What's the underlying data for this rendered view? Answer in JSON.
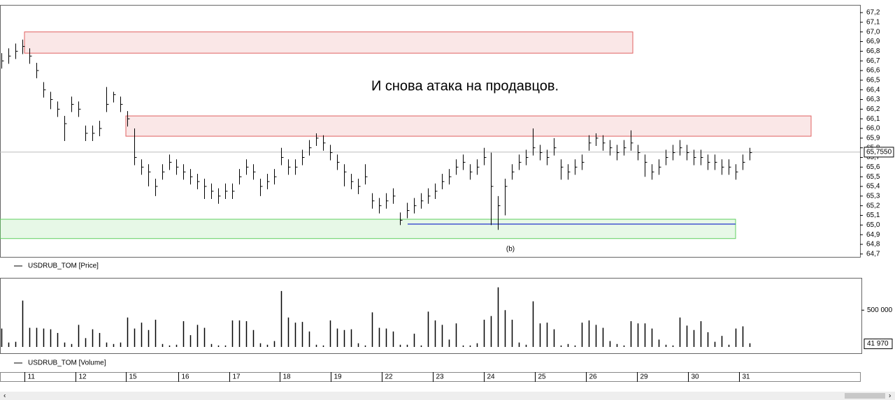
{
  "chart_data": [
    {
      "type": "ohlc",
      "annotation": "И снова атака на продавцов.",
      "panel_label": "(b)",
      "xlim": [
        -0.2,
        122.8
      ],
      "ylim": [
        64.67,
        67.28
      ],
      "yticks": [
        {
          "value": 64.7,
          "label": "64,7"
        },
        {
          "value": 64.8,
          "label": "64,8"
        },
        {
          "value": 64.9,
          "label": "64,9"
        },
        {
          "value": 65.0,
          "label": "65,0"
        },
        {
          "value": 65.1,
          "label": "65,1"
        },
        {
          "value": 65.2,
          "label": "65,2"
        },
        {
          "value": 65.3,
          "label": "65,3"
        },
        {
          "value": 65.4,
          "label": "65,4"
        },
        {
          "value": 65.5,
          "label": "65,5"
        },
        {
          "value": 65.6,
          "label": "65,6"
        },
        {
          "value": 65.7,
          "label": "65,7"
        },
        {
          "value": 65.8,
          "label": "65,8"
        },
        {
          "value": 65.9,
          "label": "65,9"
        },
        {
          "value": 66.0,
          "label": "66,0"
        },
        {
          "value": 66.1,
          "label": "66,1"
        },
        {
          "value": 66.2,
          "label": "66,2"
        },
        {
          "value": 66.3,
          "label": "66,3"
        },
        {
          "value": 66.4,
          "label": "66,4"
        },
        {
          "value": 66.5,
          "label": "66,5"
        },
        {
          "value": 66.6,
          "label": "66,6"
        },
        {
          "value": 66.7,
          "label": "66,7"
        },
        {
          "value": 66.8,
          "label": "66,8"
        },
        {
          "value": 66.9,
          "label": "66,9"
        },
        {
          "value": 67.0,
          "label": "67,0"
        },
        {
          "value": 67.1,
          "label": "67,1"
        },
        {
          "value": 67.2,
          "label": "67,2"
        }
      ],
      "last_price": {
        "value": 65.755,
        "label": "65,7550"
      },
      "zones": [
        {
          "low": 66.78,
          "high": 67.0,
          "x0": 3.3,
          "x1": 90.3,
          "color": "#e06060"
        },
        {
          "low": 65.92,
          "high": 66.13,
          "x0": 17.8,
          "x1": 115.8,
          "color": "#e06060"
        },
        {
          "low": 64.86,
          "high": 65.06,
          "x0": -0.2,
          "x1": 105.0,
          "color": "#60d060"
        }
      ],
      "level": {
        "value": 65.01,
        "x0": 58.1,
        "x1": 105.0,
        "color": "#2233cc"
      },
      "series": [
        {
          "name": "USDRUB_TOM [Price]",
          "color": "#000000",
          "high": [
            66.78,
            66.83,
            66.88,
            66.92,
            66.83,
            66.68,
            66.48,
            66.38,
            66.28,
            66.13,
            66.33,
            66.28,
            66.03,
            66.03,
            66.08,
            66.43,
            66.38,
            66.33,
            66.18,
            66.0,
            65.68,
            65.63,
            65.48,
            65.63,
            65.73,
            65.68,
            65.63,
            65.58,
            65.53,
            65.48,
            65.43,
            65.38,
            65.43,
            65.43,
            65.58,
            65.68,
            65.63,
            65.48,
            65.53,
            65.58,
            65.8,
            65.68,
            65.68,
            65.78,
            65.88,
            65.95,
            65.93,
            65.83,
            65.73,
            65.63,
            65.53,
            65.48,
            65.63,
            65.33,
            65.28,
            65.33,
            65.38,
            65.13,
            65.23,
            65.28,
            65.33,
            65.38,
            65.43,
            65.53,
            65.58,
            65.68,
            65.73,
            65.63,
            65.68,
            65.8,
            65.75,
            65.3,
            65.48,
            65.63,
            65.73,
            65.78,
            66.0,
            65.83,
            65.78,
            65.9,
            65.68,
            65.63,
            65.68,
            65.73,
            65.93,
            65.95,
            65.93,
            65.88,
            65.83,
            65.88,
            65.98,
            65.83,
            65.73,
            65.63,
            65.68,
            65.78,
            65.83,
            65.88,
            65.83,
            65.78,
            65.78,
            65.73,
            65.73,
            65.68,
            65.68,
            65.63,
            65.73,
            65.8
          ],
          "low": [
            66.62,
            66.67,
            66.72,
            66.77,
            66.67,
            66.52,
            66.32,
            66.2,
            66.12,
            65.87,
            66.17,
            66.12,
            65.87,
            65.87,
            65.92,
            66.17,
            66.27,
            66.17,
            66.02,
            65.62,
            65.52,
            65.4,
            65.3,
            65.47,
            65.57,
            65.52,
            65.47,
            65.42,
            65.37,
            65.27,
            65.27,
            65.22,
            65.27,
            65.27,
            65.42,
            65.52,
            65.47,
            65.3,
            65.37,
            65.42,
            65.62,
            65.52,
            65.52,
            65.62,
            65.72,
            65.82,
            65.77,
            65.67,
            65.57,
            65.4,
            65.37,
            65.32,
            65.42,
            65.17,
            65.12,
            65.17,
            65.22,
            65.0,
            65.07,
            65.12,
            65.17,
            65.22,
            65.27,
            65.37,
            65.42,
            65.52,
            65.57,
            65.47,
            65.52,
            65.62,
            65.0,
            64.95,
            65.1,
            65.47,
            65.57,
            65.62,
            65.72,
            65.67,
            65.62,
            65.72,
            65.47,
            65.47,
            65.52,
            65.57,
            65.77,
            65.82,
            65.77,
            65.72,
            65.67,
            65.72,
            65.77,
            65.67,
            65.5,
            65.47,
            65.52,
            65.62,
            65.67,
            65.72,
            65.67,
            65.62,
            65.62,
            65.57,
            65.57,
            65.52,
            65.52,
            65.47,
            65.57,
            65.67
          ],
          "close": [
            66.7,
            66.75,
            66.8,
            66.85,
            66.75,
            66.6,
            66.4,
            66.3,
            66.2,
            66.05,
            66.25,
            66.2,
            65.95,
            65.95,
            66.0,
            66.25,
            66.35,
            66.25,
            66.1,
            65.7,
            65.6,
            65.55,
            65.4,
            65.55,
            65.65,
            65.6,
            65.55,
            65.5,
            65.45,
            65.4,
            65.35,
            65.3,
            65.35,
            65.35,
            65.5,
            65.6,
            65.55,
            65.4,
            65.45,
            65.5,
            65.7,
            65.6,
            65.6,
            65.7,
            65.8,
            65.9,
            65.85,
            65.75,
            65.65,
            65.55,
            65.45,
            65.4,
            65.5,
            65.25,
            65.2,
            65.25,
            65.3,
            65.05,
            65.15,
            65.2,
            65.25,
            65.3,
            65.35,
            65.45,
            65.5,
            65.6,
            65.65,
            65.55,
            65.6,
            65.7,
            65.4,
            65.2,
            65.4,
            65.55,
            65.65,
            65.7,
            65.8,
            65.75,
            65.7,
            65.8,
            65.6,
            65.55,
            65.6,
            65.65,
            65.85,
            65.9,
            65.85,
            65.8,
            65.75,
            65.8,
            65.85,
            65.75,
            65.65,
            65.55,
            65.6,
            65.7,
            65.75,
            65.8,
            65.75,
            65.7,
            65.7,
            65.65,
            65.65,
            65.6,
            65.6,
            65.55,
            65.65,
            65.75
          ]
        }
      ]
    },
    {
      "type": "bar",
      "xlim": [
        -0.2,
        122.8
      ],
      "ylim": [
        0,
        920000
      ],
      "yticks": [
        {
          "value": 500000,
          "label": "500 000"
        }
      ],
      "last_volume": {
        "value": 41970,
        "label": "41 970"
      },
      "xticks": [
        {
          "value": 3.3,
          "label": "11"
        },
        {
          "value": 10.6,
          "label": "12"
        },
        {
          "value": 17.8,
          "label": "15"
        },
        {
          "value": 25.3,
          "label": "16"
        },
        {
          "value": 32.6,
          "label": "17"
        },
        {
          "value": 39.8,
          "label": "18"
        },
        {
          "value": 47.1,
          "label": "19"
        },
        {
          "value": 54.4,
          "label": "22"
        },
        {
          "value": 61.7,
          "label": "23"
        },
        {
          "value": 69.0,
          "label": "24"
        },
        {
          "value": 76.3,
          "label": "25"
        },
        {
          "value": 83.6,
          "label": "26"
        },
        {
          "value": 90.9,
          "label": "29"
        },
        {
          "value": 98.2,
          "label": "30"
        },
        {
          "value": 105.5,
          "label": "31"
        }
      ],
      "series": [
        {
          "name": "USDRUB_TOM [Volume]",
          "color": "#000000",
          "values": [
            250000,
            60000,
            70000,
            630000,
            260000,
            260000,
            250000,
            240000,
            190000,
            60000,
            40000,
            300000,
            120000,
            240000,
            190000,
            60000,
            40000,
            60000,
            400000,
            250000,
            330000,
            230000,
            370000,
            40000,
            20000,
            30000,
            350000,
            160000,
            300000,
            260000,
            40000,
            20000,
            20000,
            360000,
            360000,
            350000,
            230000,
            50000,
            30000,
            80000,
            760000,
            400000,
            330000,
            340000,
            210000,
            30000,
            20000,
            360000,
            250000,
            230000,
            240000,
            50000,
            20000,
            470000,
            260000,
            250000,
            210000,
            30000,
            30000,
            180000,
            20000,
            480000,
            360000,
            300000,
            100000,
            320000,
            20000,
            20000,
            50000,
            370000,
            420000,
            810000,
            500000,
            370000,
            60000,
            30000,
            620000,
            320000,
            330000,
            240000,
            20000,
            40000,
            20000,
            330000,
            360000,
            300000,
            260000,
            80000,
            40000,
            20000,
            350000,
            320000,
            320000,
            250000,
            100000,
            30000,
            20000,
            400000,
            290000,
            230000,
            350000,
            200000,
            70000,
            150000,
            30000,
            250000,
            280000,
            50000
          ]
        }
      ]
    }
  ]
}
